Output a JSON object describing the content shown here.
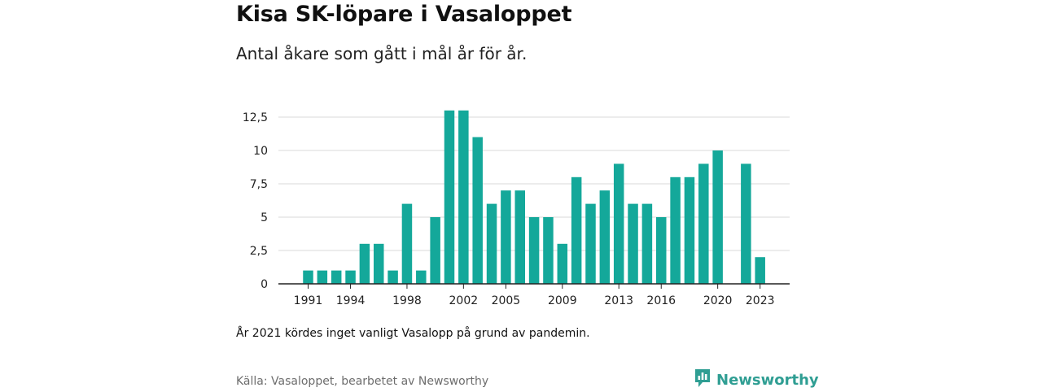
{
  "header": {
    "title": "Kisa SK-löpare i Vasaloppet",
    "subtitle": "Antal åkare som gått i mål år för år."
  },
  "note": "År 2021 kördes inget vanligt Vasalopp på grund av pandemin.",
  "source": "Källa: Vasaloppet, bearbetet av Newsworthy",
  "logo": {
    "text": "Newsworthy",
    "icon": "newsworthy-bar-chart-icon"
  },
  "colors": {
    "bar": "#14a89a",
    "grid": "#d9d9d9",
    "axis": "#222222",
    "logo": "#2f9e93"
  },
  "chart_data": {
    "type": "bar",
    "title": "Kisa SK-löpare i Vasaloppet",
    "subtitle": "Antal åkare som gått i mål år för år.",
    "xlabel": "",
    "ylabel": "",
    "ylim": [
      0,
      12.5
    ],
    "y_ticks": [
      "0",
      "2,5",
      "5",
      "7,5",
      "10",
      "12,5"
    ],
    "x_tick_labels": [
      "1991",
      "1994",
      "1998",
      "2002",
      "2005",
      "2009",
      "2013",
      "2016",
      "2020",
      "2023"
    ],
    "grid": true,
    "categories": [
      1991,
      1992,
      1993,
      1994,
      1995,
      1996,
      1997,
      1998,
      1999,
      2000,
      2001,
      2002,
      2003,
      2004,
      2005,
      2006,
      2007,
      2008,
      2009,
      2010,
      2011,
      2012,
      2013,
      2014,
      2015,
      2016,
      2017,
      2018,
      2019,
      2020,
      2021,
      2022,
      2023
    ],
    "values": [
      1,
      1,
      1,
      1,
      3,
      3,
      1,
      6,
      1,
      5,
      13,
      13,
      11,
      6,
      7,
      7,
      5,
      5,
      3,
      8,
      6,
      7,
      9,
      6,
      6,
      5,
      8,
      8,
      9,
      10,
      null,
      9,
      2
    ]
  }
}
